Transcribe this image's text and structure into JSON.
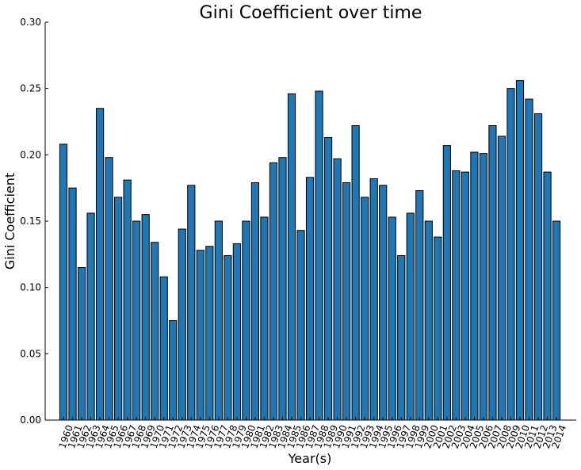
{
  "chart_data": {
    "type": "bar",
    "title": "Gini Coefficient over time",
    "xlabel": "Year(s)",
    "ylabel": "Gini Coefficient",
    "ylim": [
      0,
      0.3
    ],
    "yticks": [
      "0.00",
      "0.05",
      "0.10",
      "0.15",
      "0.20",
      "0.25",
      "0.30"
    ],
    "bar_color": "#1f77b4",
    "grid": false,
    "categories": [
      "1960",
      "1961",
      "1962",
      "1963",
      "1964",
      "1965",
      "1966",
      "1967",
      "1968",
      "1969",
      "1970",
      "1971",
      "1972",
      "1973",
      "1974",
      "1975",
      "1976",
      "1977",
      "1978",
      "1979",
      "1980",
      "1981",
      "1982",
      "1983",
      "1984",
      "1985",
      "1986",
      "1987",
      "1988",
      "1989",
      "1990",
      "1991",
      "1992",
      "1993",
      "1994",
      "1995",
      "1996",
      "1997",
      "1998",
      "1999",
      "2000",
      "2001",
      "2002",
      "2003",
      "2004",
      "2005",
      "2006",
      "2007",
      "2008",
      "2009",
      "2010",
      "2011",
      "2012",
      "2013",
      "2014"
    ],
    "values": [
      0.208,
      0.175,
      0.115,
      0.156,
      0.235,
      0.198,
      0.168,
      0.181,
      0.15,
      0.155,
      0.134,
      0.108,
      0.075,
      0.144,
      0.177,
      0.128,
      0.131,
      0.15,
      0.124,
      0.133,
      0.15,
      0.179,
      0.153,
      0.194,
      0.198,
      0.246,
      0.143,
      0.183,
      0.248,
      0.213,
      0.197,
      0.179,
      0.222,
      0.168,
      0.182,
      0.177,
      0.153,
      0.124,
      0.156,
      0.173,
      0.15,
      0.138,
      0.207,
      0.188,
      0.187,
      0.202,
      0.201,
      0.222,
      0.214,
      0.25,
      0.256,
      0.242,
      0.231,
      0.187,
      0.15
    ]
  }
}
